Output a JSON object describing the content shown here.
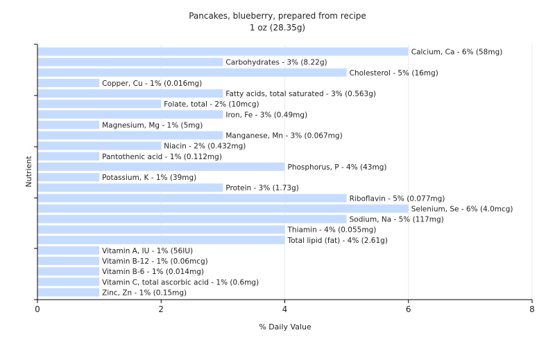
{
  "chart_data": {
    "type": "bar",
    "orientation": "horizontal",
    "title": "Pancakes, blueberry, prepared from recipe",
    "subtitle": "1 oz (28.35g)",
    "xlabel": "% Daily Value",
    "ylabel": "Nutrient",
    "xlim": [
      0,
      8
    ],
    "xticks": [
      0,
      2,
      4,
      6,
      8
    ],
    "grid": true,
    "bar_color": "#c6dcff",
    "categories": [
      "Calcium, Ca",
      "Carbohydrates",
      "Cholesterol",
      "Copper, Cu",
      "Fatty acids, total saturated",
      "Folate, total",
      "Iron, Fe",
      "Magnesium, Mg",
      "Manganese, Mn",
      "Niacin",
      "Pantothenic acid",
      "Phosphorus, P",
      "Potassium, K",
      "Protein",
      "Riboflavin",
      "Selenium, Se",
      "Sodium, Na",
      "Thiamin",
      "Total lipid (fat)",
      "Vitamin A, IU",
      "Vitamin B-12",
      "Vitamin B-6",
      "Vitamin C, total ascorbic acid",
      "Zinc, Zn"
    ],
    "values": [
      6,
      3,
      5,
      1,
      3,
      2,
      3,
      1,
      3,
      2,
      1,
      4,
      1,
      3,
      5,
      6,
      5,
      4,
      4,
      1,
      1,
      1,
      1,
      1
    ],
    "labels": [
      "Calcium, Ca - 6% (58mg)",
      "Carbohydrates - 3% (8.22g)",
      "Cholesterol - 5% (16mg)",
      "Copper, Cu - 1% (0.016mg)",
      "Fatty acids, total saturated - 3% (0.563g)",
      "Folate, total - 2% (10mcg)",
      "Iron, Fe - 3% (0.49mg)",
      "Magnesium, Mg - 1% (5mg)",
      "Manganese, Mn - 3% (0.067mg)",
      "Niacin - 2% (0.432mg)",
      "Pantothenic acid - 1% (0.112mg)",
      "Phosphorus, P - 4% (43mg)",
      "Potassium, K - 1% (39mg)",
      "Protein - 3% (1.73g)",
      "Riboflavin - 5% (0.077mg)",
      "Selenium, Se - 6% (4.0mcg)",
      "Sodium, Na - 5% (117mg)",
      "Thiamin - 4% (0.055mg)",
      "Total lipid (fat) - 4% (2.61g)",
      "Vitamin A, IU - 1% (56IU)",
      "Vitamin B-12 - 1% (0.06mcg)",
      "Vitamin B-6 - 1% (0.014mg)",
      "Vitamin C, total ascorbic acid - 1% (0.6mg)",
      "Zinc, Zn - 1% (0.15mg)"
    ]
  }
}
